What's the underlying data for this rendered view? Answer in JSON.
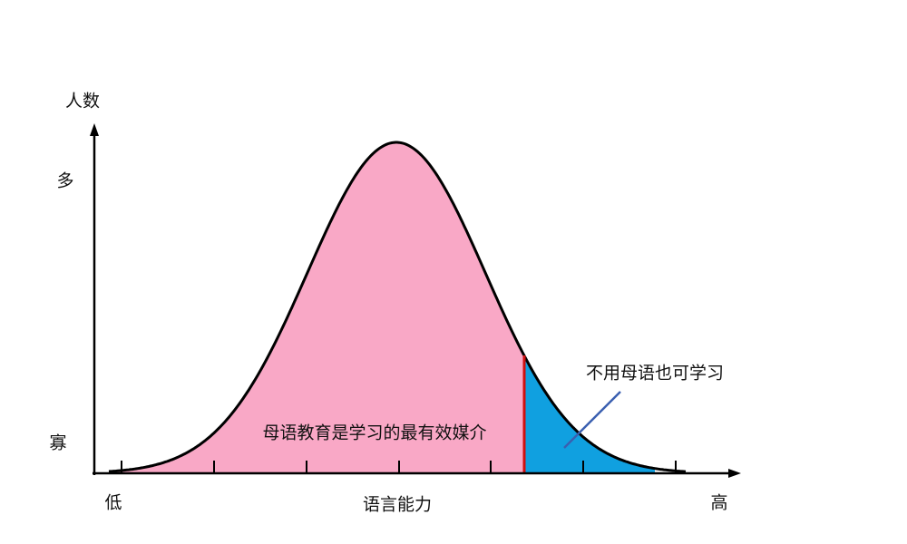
{
  "axes": {
    "y_title": "人数",
    "y_high": "多",
    "y_low": "寡",
    "x_low": "低",
    "x_title": "语言能力",
    "x_high": "高"
  },
  "regions": {
    "main": "母语教育是学习的最有效媒介",
    "tail": "不用母语也可学习"
  }
}
